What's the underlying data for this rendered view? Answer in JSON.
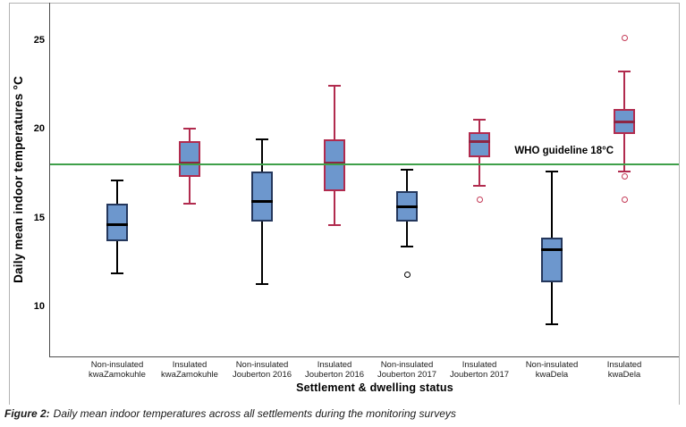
{
  "figure": {
    "caption_label": "Figure 2:",
    "caption_text": "Daily mean indoor temperatures across all settlements during the monitoring surveys"
  },
  "chart_data": {
    "type": "boxplot",
    "title": "",
    "ylabel": "Daily mean indoor temperatures °C",
    "xlabel": "Settlement & dwelling status",
    "y_ticks": [
      25,
      20,
      15,
      10
    ],
    "ylim": [
      7,
      27
    ],
    "grid": false,
    "reference_line": {
      "value": 18,
      "label": "WHO guideline 18°C",
      "color": "#3fa04a"
    },
    "colors": {
      "box_fill": "#6d97cd",
      "axis": "#4d4d4d",
      "frame": "#b3b3b3",
      "non_insulated": {
        "whisker": "#000000",
        "box_border": "#24375c",
        "median": "#000000",
        "outlier": "#000000"
      },
      "insulated": {
        "whisker": "#b12b4e",
        "box_border": "#b12b4e",
        "median": "#8d2644",
        "outlier": "#c43b57"
      }
    },
    "categories": [
      {
        "label": [
          "Non-insulated",
          "kwaZamokuhle"
        ],
        "style": "non_insulated",
        "whisker_low": 11.9,
        "q1": 13.7,
        "median": 14.6,
        "q3": 15.8,
        "whisker_high": 17.1,
        "outliers": []
      },
      {
        "label": [
          "Insulated",
          "kwaZamokuhle"
        ],
        "style": "insulated",
        "whisker_low": 15.8,
        "q1": 17.3,
        "median": 18.1,
        "q3": 19.3,
        "whisker_high": 20.0,
        "outliers": []
      },
      {
        "label": [
          "Non-insulated",
          "Jouberton 2016"
        ],
        "style": "non_insulated",
        "whisker_low": 11.3,
        "q1": 14.8,
        "median": 15.9,
        "q3": 17.6,
        "whisker_high": 19.4,
        "outliers": []
      },
      {
        "label": [
          "Insulated",
          "Jouberton 2016"
        ],
        "style": "insulated",
        "whisker_low": 14.6,
        "q1": 16.5,
        "median": 18.1,
        "q3": 19.4,
        "whisker_high": 22.4,
        "outliers": []
      },
      {
        "label": [
          "Non-insulated",
          "Jouberton 2017"
        ],
        "style": "non_insulated",
        "whisker_low": 13.4,
        "q1": 14.8,
        "median": 15.6,
        "q3": 16.5,
        "whisker_high": 17.7,
        "outliers": [
          11.8
        ]
      },
      {
        "label": [
          "Insulated",
          "Jouberton 2017"
        ],
        "style": "insulated",
        "whisker_low": 16.8,
        "q1": 18.4,
        "median": 19.3,
        "q3": 19.8,
        "whisker_high": 20.5,
        "outliers": [
          16.0
        ]
      },
      {
        "label": [
          "Non-insulated",
          "kwaDela"
        ],
        "style": "non_insulated",
        "whisker_low": 9.0,
        "q1": 11.4,
        "median": 13.2,
        "q3": 13.9,
        "whisker_high": 17.6,
        "outliers": []
      },
      {
        "label": [
          "Insulated",
          "kwaDela"
        ],
        "style": "insulated",
        "whisker_low": 17.6,
        "q1": 19.7,
        "median": 20.4,
        "q3": 21.1,
        "whisker_high": 23.2,
        "outliers": [
          25.1,
          17.3,
          16.0
        ]
      }
    ]
  }
}
